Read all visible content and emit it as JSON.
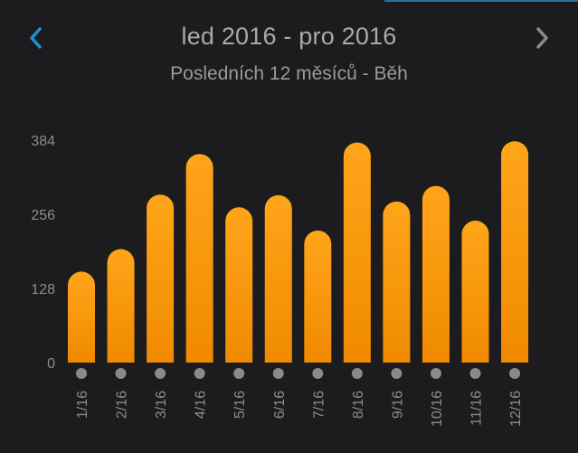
{
  "header": {
    "title": "led 2016 - pro 2016",
    "subtitle": "Posledních 12 měsíců - Běh",
    "prev_icon": "chevron-left-icon",
    "next_icon": "chevron-right-icon"
  },
  "colors": {
    "background": "#1c1c1e",
    "bar_top": "#ffa51a",
    "bar_bottom": "#f08a00",
    "nav_prev": "#1e90d6",
    "nav_next": "#8a8a8a",
    "axis_text": "#8c8c8c",
    "marker": "#8a8a8a"
  },
  "chart_data": {
    "type": "bar",
    "title": "",
    "xlabel": "",
    "ylabel": "",
    "categories": [
      "1/16",
      "2/16",
      "3/16",
      "4/16",
      "5/16",
      "6/16",
      "7/16",
      "8/16",
      "9/16",
      "10/16",
      "11/16",
      "12/16"
    ],
    "values": [
      157,
      196,
      290,
      360,
      268,
      289,
      228,
      380,
      278,
      305,
      245,
      382
    ],
    "ylim": [
      0,
      384
    ],
    "yticks": [
      0,
      128,
      256,
      384
    ],
    "grid": false,
    "legend": "none"
  }
}
